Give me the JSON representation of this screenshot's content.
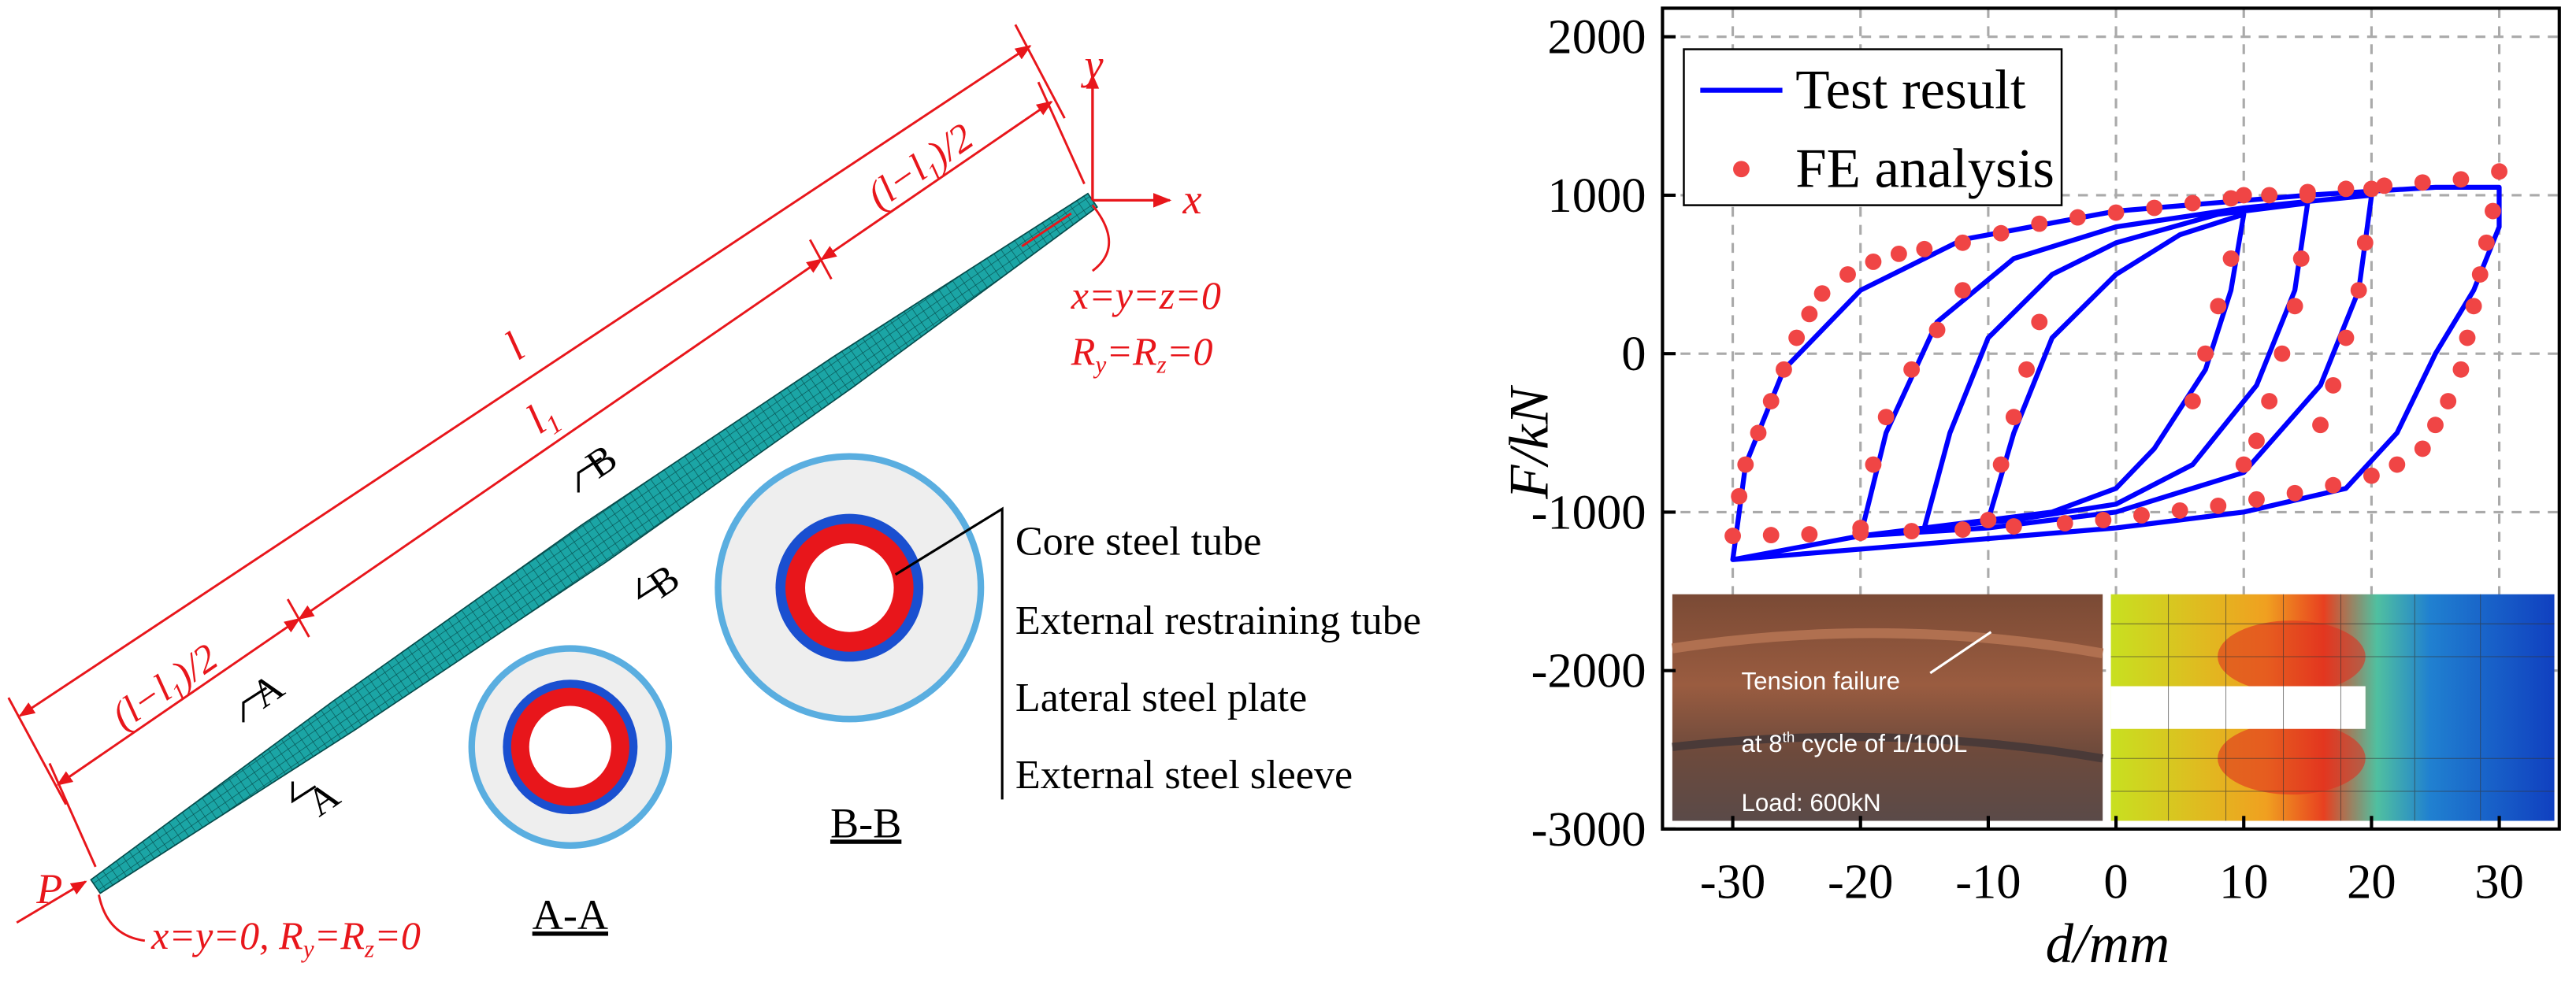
{
  "diagram": {
    "axis_y": "y",
    "axis_x": "x",
    "top_support": {
      "line1": "x=y=z=0",
      "line2": [
        "R",
        "y",
        "=R",
        "z",
        "=0"
      ]
    },
    "load": "P",
    "bottom_support": [
      "x=y=0, R",
      "y",
      "=R",
      "z",
      "=0"
    ],
    "dim_l": "l",
    "dim_l1": [
      "l",
      "1"
    ],
    "dim_half": [
      "(l−l",
      "1",
      ")/2"
    ],
    "section_a": "A",
    "section_b": "B",
    "label_aa": "A-A",
    "label_bb": "B-B",
    "components": [
      "Core steel tube",
      "External restraining tube",
      "Lateral steel plate",
      "External steel sleeve"
    ]
  },
  "photo": {
    "line1": "Tension failure",
    "line2": [
      "at 8",
      "th",
      " cycle of 1/100L"
    ],
    "line3": "Load: 600kN"
  },
  "chart_data": {
    "type": "line",
    "x_label": "d/mm",
    "y_label": "F/kN",
    "xlim": [
      -35.5,
      34.7
    ],
    "ylim": [
      -3000,
      2180
    ],
    "xticks": [
      -30,
      -20,
      -10,
      0,
      10,
      20,
      30
    ],
    "yticks": [
      -3000,
      -2000,
      -1000,
      0,
      1000,
      2000
    ],
    "grid": true,
    "legend": "upper left",
    "series": [
      {
        "name": "Test result",
        "type": "line",
        "color": "#0000ff",
        "x": [
          -10,
          -8,
          -5,
          0,
          5,
          10,
          9,
          7,
          3,
          0,
          -5,
          -10,
          -15,
          -13,
          -10,
          -5,
          0,
          8,
          15,
          14,
          11,
          6,
          0,
          -8,
          -15,
          -20,
          -18,
          -14,
          -8,
          0,
          10,
          20,
          19,
          16,
          10,
          0,
          -10,
          -20,
          -30,
          -29,
          -26,
          -20,
          -12,
          0,
          15,
          25,
          30,
          30,
          28,
          25,
          22,
          18,
          10,
          0,
          -15,
          -30
        ],
        "y": [
          -1050,
          -500,
          100,
          500,
          750,
          880,
          400,
          -100,
          -600,
          -850,
          -1000,
          -1050,
          -1100,
          -500,
          100,
          500,
          700,
          880,
          950,
          400,
          -200,
          -700,
          -950,
          -1050,
          -1100,
          -1150,
          -500,
          200,
          600,
          800,
          920,
          1000,
          400,
          -200,
          -750,
          -1000,
          -1100,
          -1150,
          -1300,
          -700,
          -100,
          400,
          720,
          900,
          1000,
          1050,
          1050,
          800,
          400,
          0,
          -500,
          -850,
          -1000,
          -1100,
          -1200,
          -1300
        ]
      },
      {
        "name": "FE analysis",
        "type": "scatter",
        "color": "#f04545",
        "x": [
          -30,
          -29.5,
          -29,
          -28,
          -27,
          -26,
          -25,
          -24,
          -23,
          -21,
          -19,
          -17,
          -15,
          -12,
          -9,
          -6,
          -3,
          0,
          3,
          6,
          9,
          12,
          15,
          18,
          21,
          24,
          27,
          30,
          29.5,
          29,
          28.5,
          28,
          27.5,
          27,
          26,
          25,
          24,
          22,
          20,
          17,
          14,
          11,
          8,
          5,
          2,
          -1,
          -4,
          -8,
          -12,
          -16,
          -20,
          -24,
          -27,
          15,
          14.5,
          14,
          13,
          12,
          11,
          10,
          20,
          19.5,
          19,
          18,
          17,
          16,
          -20,
          -19,
          -18,
          -16,
          -14,
          -12,
          10,
          9,
          8,
          7,
          6,
          -10,
          -9,
          -8,
          -7,
          -6
        ],
        "y": [
          -1150,
          -900,
          -700,
          -500,
          -300,
          -100,
          100,
          250,
          380,
          500,
          580,
          630,
          660,
          700,
          760,
          820,
          860,
          890,
          920,
          950,
          980,
          1000,
          1020,
          1040,
          1060,
          1080,
          1100,
          1150,
          900,
          700,
          500,
          300,
          100,
          -100,
          -300,
          -450,
          -600,
          -700,
          -770,
          -830,
          -880,
          -920,
          -960,
          -990,
          -1020,
          -1050,
          -1070,
          -1090,
          -1110,
          -1120,
          -1130,
          -1140,
          -1145,
          1000,
          600,
          300,
          0,
          -300,
          -550,
          -700,
          1040,
          700,
          400,
          100,
          -200,
          -450,
          -1100,
          -700,
          -400,
          -100,
          150,
          400,
          1000,
          600,
          300,
          0,
          -300,
          -1050,
          -700,
          -400,
          -100,
          200
        ]
      }
    ]
  }
}
